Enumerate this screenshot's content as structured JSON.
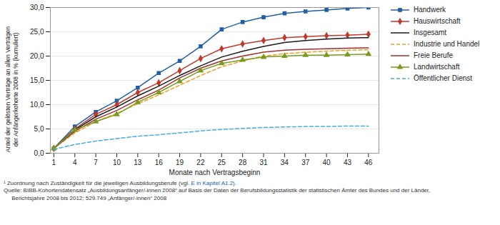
{
  "chart_data": {
    "type": "line",
    "x": [
      1,
      4,
      7,
      10,
      13,
      16,
      19,
      22,
      25,
      28,
      31,
      34,
      37,
      40,
      43,
      46
    ],
    "series": [
      {
        "name": "Handwerk",
        "color": "#2060a8",
        "marker": "square",
        "line_style": "solid",
        "values": [
          1.0,
          5.5,
          8.5,
          10.8,
          13.5,
          16.5,
          19.0,
          22.0,
          25.5,
          27.0,
          28.0,
          28.8,
          29.2,
          29.5,
          29.8,
          30.0
        ]
      },
      {
        "name": "Hauswirtschaft",
        "color": "#c0392b",
        "marker": "diamond",
        "line_style": "solid",
        "values": [
          1.0,
          5.0,
          8.0,
          10.0,
          12.5,
          14.5,
          17.0,
          19.5,
          21.5,
          22.5,
          23.2,
          23.8,
          24.0,
          24.2,
          24.3,
          24.5
        ]
      },
      {
        "name": "Insgesamt",
        "color": "#1a1a1a",
        "line_style": "solid",
        "values": [
          1.0,
          4.8,
          7.5,
          9.5,
          11.8,
          13.8,
          16.0,
          18.0,
          19.8,
          21.0,
          22.0,
          22.8,
          23.2,
          23.5,
          23.7,
          23.8
        ]
      },
      {
        "name": "Industrie und Handel",
        "color": "#f0a020",
        "line_style": "dashed",
        "values": [
          1.0,
          4.2,
          6.5,
          8.2,
          10.2,
          12.0,
          14.0,
          16.0,
          17.8,
          19.0,
          20.0,
          20.5,
          20.8,
          21.0,
          21.2,
          21.3
        ]
      },
      {
        "name": "Freie Berufe",
        "color": "#a03030",
        "line_style": "solid",
        "values": [
          1.0,
          4.5,
          7.0,
          8.8,
          11.0,
          13.0,
          15.5,
          17.5,
          19.0,
          20.0,
          20.8,
          21.2,
          21.4,
          21.5,
          21.6,
          21.7
        ]
      },
      {
        "name": "Landwirtschaft",
        "color": "#7a9a20",
        "marker": "triangle",
        "line_style": "solid",
        "values": [
          1.0,
          4.8,
          6.5,
          8.0,
          10.5,
          12.5,
          14.8,
          17.0,
          18.5,
          19.2,
          19.8,
          20.0,
          20.2,
          20.2,
          20.3,
          20.4
        ]
      },
      {
        "name": "Öffentlicher Dienst",
        "color": "#40b0d8",
        "line_style": "dashed",
        "values": [
          0.8,
          1.8,
          2.5,
          3.0,
          3.5,
          3.8,
          4.2,
          4.6,
          4.9,
          5.1,
          5.3,
          5.4,
          5.5,
          5.5,
          5.6,
          5.6
        ]
      }
    ],
    "xlabel": "Monate nach Vertragsbeginn",
    "ylabel": "Anteil der gelösten Verträge an allen Verträgen\nder Anfängerkohorte 2008 in % (kumuliert)",
    "xlim": [
      0.5,
      47.5
    ],
    "xticks": [
      1,
      4,
      7,
      10,
      13,
      16,
      19,
      22,
      25,
      28,
      31,
      34,
      37,
      40,
      43,
      46
    ],
    "ylim": [
      0.0,
      30.0
    ],
    "yticks": [
      {
        "value": 0,
        "label": "0,0"
      },
      {
        "value": 5,
        "label": "5,0"
      },
      {
        "value": 10,
        "label": "10,0"
      },
      {
        "value": 15,
        "label": "15,0"
      },
      {
        "value": 20,
        "label": "20,0"
      },
      {
        "value": 25,
        "label": "25,0"
      },
      {
        "value": 30,
        "label": "30,0"
      }
    ],
    "grid": true,
    "legend": "right",
    "annotations": [
      "¹ Zuordnung nach Zuständigkeit für die jeweiligen Ausbildungsberufe (vgl. ",
      "E in Kapitel A1.2).",
      "Quelle: BIBB-Kohortendatensatz „Ausbildungsanfänger/-innen 2008“ auf Basis der Daten der Berufsbildungsstatistik der statistischen Ämter des Bundes und der Länder,",
      "     Berichtsjahre 2008 bis 2012; 529.749 „Anfänger/-innen“ 2008"
    ]
  }
}
